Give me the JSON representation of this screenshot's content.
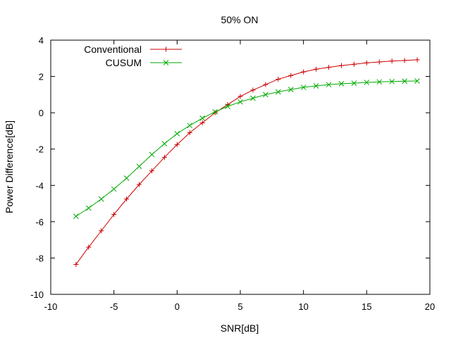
{
  "chart_data": {
    "type": "line",
    "title": "50% ON",
    "xlabel": "SNR[dB]",
    "ylabel": "Power Difference[dB]",
    "xlim": [
      -10,
      20
    ],
    "ylim": [
      -10,
      4
    ],
    "xticks": [
      -10,
      -5,
      0,
      5,
      10,
      15,
      20
    ],
    "yticks": [
      -10,
      -8,
      -6,
      -4,
      -2,
      0,
      2,
      4
    ],
    "xtick_labels": [
      "-10",
      "-5",
      "0",
      "5",
      "10",
      "15",
      "20"
    ],
    "ytick_labels": [
      "-10",
      "-8",
      "-6",
      "-4",
      "-2",
      "0",
      "2",
      "4"
    ],
    "grid": false,
    "legend_position": "top-left",
    "x": [
      -8,
      -7,
      -6,
      -5,
      -4,
      -3,
      -2,
      -1,
      0,
      1,
      2,
      3,
      4,
      5,
      6,
      7,
      8,
      9,
      10,
      11,
      12,
      13,
      14,
      15,
      16,
      17,
      18,
      19
    ],
    "series": [
      {
        "name": "Conventional",
        "color": "#cc0000",
        "marker": "plus",
        "values": [
          -8.35,
          -7.4,
          -6.5,
          -5.6,
          -4.75,
          -3.95,
          -3.2,
          -2.45,
          -1.75,
          -1.1,
          -0.55,
          0.0,
          0.45,
          0.9,
          1.25,
          1.55,
          1.85,
          2.05,
          2.25,
          2.4,
          2.5,
          2.6,
          2.67,
          2.75,
          2.8,
          2.85,
          2.88,
          2.92
        ]
      },
      {
        "name": "CUSUM",
        "color": "#00aa00",
        "marker": "cross",
        "values": [
          -5.7,
          -5.25,
          -4.75,
          -4.2,
          -3.6,
          -2.95,
          -2.3,
          -1.7,
          -1.15,
          -0.7,
          -0.3,
          0.05,
          0.35,
          0.6,
          0.8,
          1.0,
          1.15,
          1.28,
          1.4,
          1.48,
          1.55,
          1.6,
          1.63,
          1.67,
          1.7,
          1.72,
          1.74,
          1.75
        ]
      }
    ]
  }
}
